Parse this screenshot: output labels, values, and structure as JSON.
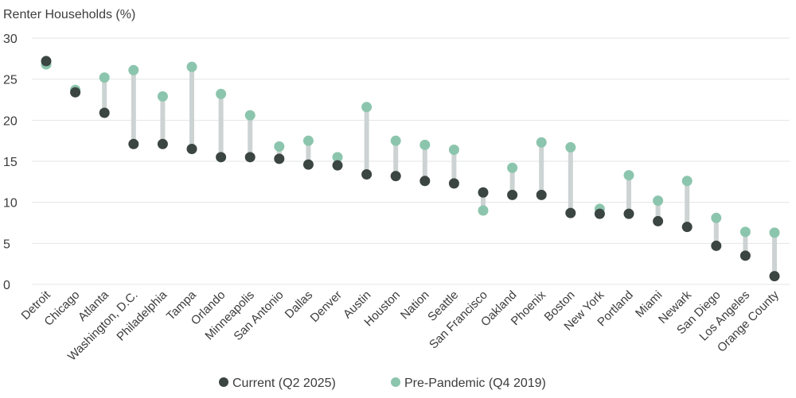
{
  "chart_data": {
    "type": "dumbbell",
    "ylabel": "Renter Households (%)",
    "ylim": [
      0,
      30
    ],
    "yticks": [
      0,
      5,
      10,
      15,
      20,
      25,
      30
    ],
    "grid": true,
    "legend_position": "bottom-center",
    "categories": [
      "Detroit",
      "Chicago",
      "Atlanta",
      "Washington, D.C.",
      "Philadelphia",
      "Tampa",
      "Orlando",
      "Minneapolis",
      "San Antonio",
      "Dallas",
      "Denver",
      "Austin",
      "Houston",
      "Nation",
      "Seattle",
      "San Francisco",
      "Oakland",
      "Phoenix",
      "Boston",
      "New York",
      "Portland",
      "Miami",
      "Newark",
      "San Diego",
      "Los Angeles",
      "Orange County"
    ],
    "series": [
      {
        "name": "Current (Q2 2025)",
        "color": "#3b4542",
        "values": [
          27.2,
          23.4,
          20.9,
          17.1,
          17.1,
          16.5,
          15.5,
          15.5,
          15.3,
          14.6,
          14.5,
          13.4,
          13.2,
          12.6,
          12.3,
          11.2,
          10.9,
          10.9,
          8.7,
          8.6,
          8.6,
          7.7,
          7.0,
          4.7,
          3.5,
          1.0
        ]
      },
      {
        "name": "Pre-Pandemic (Q4 2019)",
        "color": "#8cc5ad",
        "values": [
          26.8,
          23.7,
          25.2,
          26.1,
          22.9,
          26.5,
          23.2,
          20.6,
          16.8,
          17.5,
          15.5,
          21.6,
          17.5,
          17.0,
          16.4,
          9.0,
          14.2,
          17.3,
          16.7,
          9.2,
          13.3,
          10.2,
          12.6,
          8.1,
          6.4,
          6.3
        ]
      }
    ],
    "connector_color": "#cdd3d3",
    "grid_color": "#e3e6e6"
  }
}
